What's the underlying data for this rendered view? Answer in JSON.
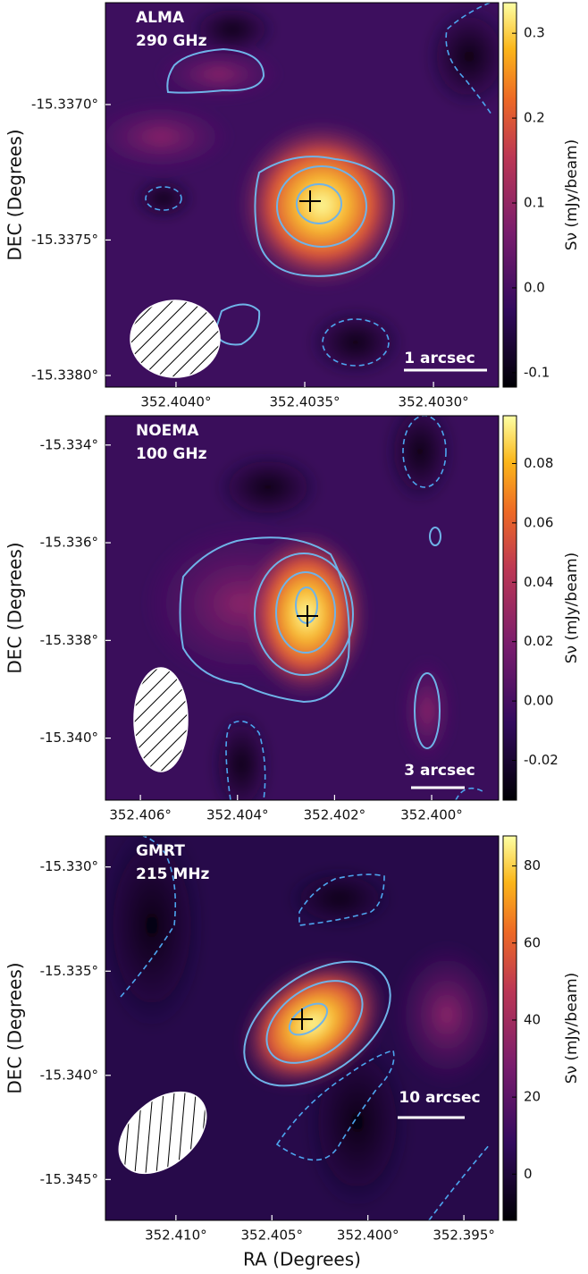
{
  "chart_data": [
    {
      "type": "heatmap",
      "label": [
        "ALMA",
        "290 GHz"
      ],
      "scale_bar": "1 arcsec",
      "ylabel": "DEC (Degrees)",
      "xlim": [
        352.404274,
        352.402747
      ],
      "ylim": [
        -15.338043,
        -15.336624
      ],
      "xticks": [
        {
          "value": 352.404,
          "label": "352.4040°"
        },
        {
          "value": 352.4035,
          "label": "352.4035°"
        },
        {
          "value": 352.403,
          "label": "352.4030°"
        }
      ],
      "yticks": [
        {
          "value": -15.337,
          "label": "-15.3370°"
        },
        {
          "value": -15.3375,
          "label": "-15.3375°"
        },
        {
          "value": -15.338,
          "label": "-15.3380°"
        }
      ],
      "colorbar": {
        "label": "Sν (mJy/beam)",
        "clim": [
          -0.117,
          0.336
        ],
        "ticks": [
          0.3,
          0.2,
          0.1,
          {
            "value": 0,
            "label": "0.0"
          },
          -0.1
        ]
      }
    },
    {
      "type": "heatmap",
      "label": [
        "NOEMA",
        "100 GHz"
      ],
      "scale_bar": "3 arcsec",
      "ylabel": "DEC (Degrees)",
      "xlim": [
        352.40672,
        352.39862
      ],
      "ylim": [
        -15.34127,
        -15.3334
      ],
      "xticks": [
        {
          "value": 352.406,
          "label": "352.406°"
        },
        {
          "value": 352.404,
          "label": "352.404°"
        },
        {
          "value": 352.402,
          "label": "352.402°"
        },
        {
          "value": 352.4,
          "label": "352.400°"
        }
      ],
      "yticks": [
        {
          "value": -15.334,
          "label": "-15.334°"
        },
        {
          "value": -15.336,
          "label": "-15.336°"
        },
        {
          "value": -15.338,
          "label": "-15.338°"
        },
        {
          "value": -15.34,
          "label": "-15.340°"
        }
      ],
      "colorbar": {
        "label": "Sν (mJy/beam)",
        "clim": [
          -0.0334,
          0.0961
        ],
        "ticks": [
          0.08,
          0.06,
          0.04,
          0.02,
          {
            "value": 0,
            "label": "0.00"
          },
          -0.02
        ]
      }
    },
    {
      "type": "heatmap",
      "label": [
        "GMRT",
        "215 MHz"
      ],
      "scale_bar": "10 arcsec",
      "ylabel": "DEC (Degrees)",
      "xlabel": "RA (Degrees)",
      "xlim": [
        352.41367,
        352.39319
      ],
      "ylim": [
        -15.34696,
        -15.32851
      ],
      "xticks": [
        {
          "value": 352.41,
          "label": "352.410°"
        },
        {
          "value": 352.405,
          "label": "352.405°"
        },
        {
          "value": 352.4,
          "label": "352.400°"
        },
        {
          "value": 352.395,
          "label": "352.395°"
        }
      ],
      "yticks": [
        {
          "value": -15.33,
          "label": "-15.330°"
        },
        {
          "value": -15.335,
          "label": "-15.335°"
        },
        {
          "value": -15.34,
          "label": "-15.340°"
        },
        {
          "value": -15.345,
          "label": "-15.345°"
        }
      ],
      "colorbar": {
        "label": "Sν (mJy/beam)",
        "clim": [
          -12,
          87.8
        ],
        "ticks": [
          80,
          60,
          40,
          20,
          0
        ]
      }
    }
  ]
}
